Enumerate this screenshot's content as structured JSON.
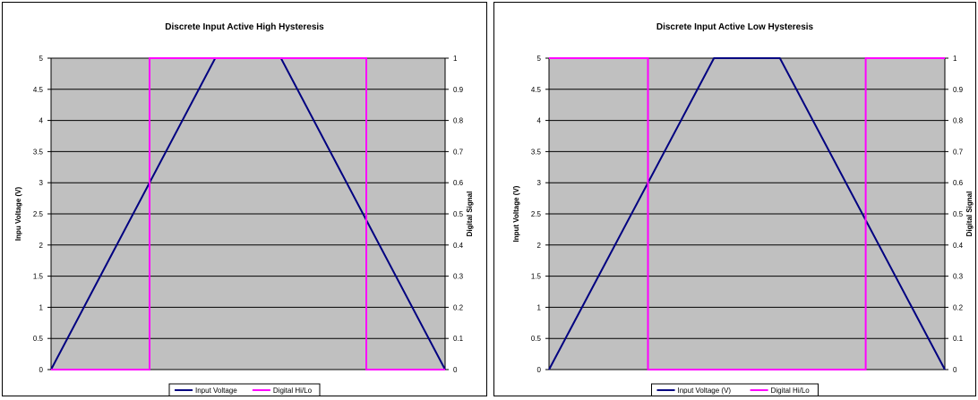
{
  "chart_data": [
    {
      "type": "line",
      "title": "Discrete Input Active High Hysteresis",
      "ylabel": "Inpu Voltage (V)",
      "y2label": "Digital Signal",
      "ylim": [
        0,
        5
      ],
      "y2lim": [
        0,
        1
      ],
      "yticks": [
        "0",
        "0.5",
        "1",
        "1.5",
        "2",
        "2.5",
        "3",
        "3.5",
        "4",
        "4.5",
        "5"
      ],
      "y2ticks": [
        "0",
        "0.1",
        "0.2",
        "0.3",
        "0.4",
        "0.5",
        "0.6",
        "0.7",
        "0.8",
        "0.9",
        "1"
      ],
      "xlim": [
        0,
        12
      ],
      "grid": true,
      "legend_position": "bottom",
      "plot_background": "#c0c0c0",
      "series": [
        {
          "name": "Input Voltage",
          "color": "#000080",
          "axis": "left",
          "x": [
            0,
            5,
            7,
            12
          ],
          "y": [
            0,
            5,
            5,
            0
          ]
        },
        {
          "name": "Digital Hi/Lo",
          "color": "#ff00ff",
          "axis": "right",
          "x": [
            0,
            3,
            3,
            9.6,
            9.6,
            12
          ],
          "y": [
            0,
            0,
            1,
            1,
            0,
            0
          ]
        }
      ]
    },
    {
      "type": "line",
      "title": "Discrete Input Active Low Hysteresis",
      "ylabel": "Input Voltage (V)",
      "y2label": "Digital Signal",
      "ylim": [
        0,
        5
      ],
      "y2lim": [
        0,
        1
      ],
      "yticks": [
        "0",
        "0.5",
        "1",
        "1.5",
        "2",
        "2.5",
        "3",
        "3.5",
        "4",
        "4.5",
        "5"
      ],
      "y2ticks": [
        "0",
        "0.1",
        "0.2",
        "0.3",
        "0.4",
        "0.5",
        "0.6",
        "0.7",
        "0.8",
        "0.9",
        "1"
      ],
      "xlim": [
        0,
        12
      ],
      "grid": true,
      "legend_position": "bottom",
      "plot_background": "#c0c0c0",
      "series": [
        {
          "name": "Input Voltage (V)",
          "color": "#000080",
          "axis": "left",
          "x": [
            0,
            5,
            7,
            12
          ],
          "y": [
            0,
            5,
            5,
            0
          ]
        },
        {
          "name": "Digital Hi/Lo",
          "color": "#ff00ff",
          "axis": "right",
          "x": [
            0,
            3,
            3,
            9.6,
            9.6,
            12
          ],
          "y": [
            1,
            1,
            0,
            0,
            1,
            1
          ]
        }
      ]
    }
  ]
}
